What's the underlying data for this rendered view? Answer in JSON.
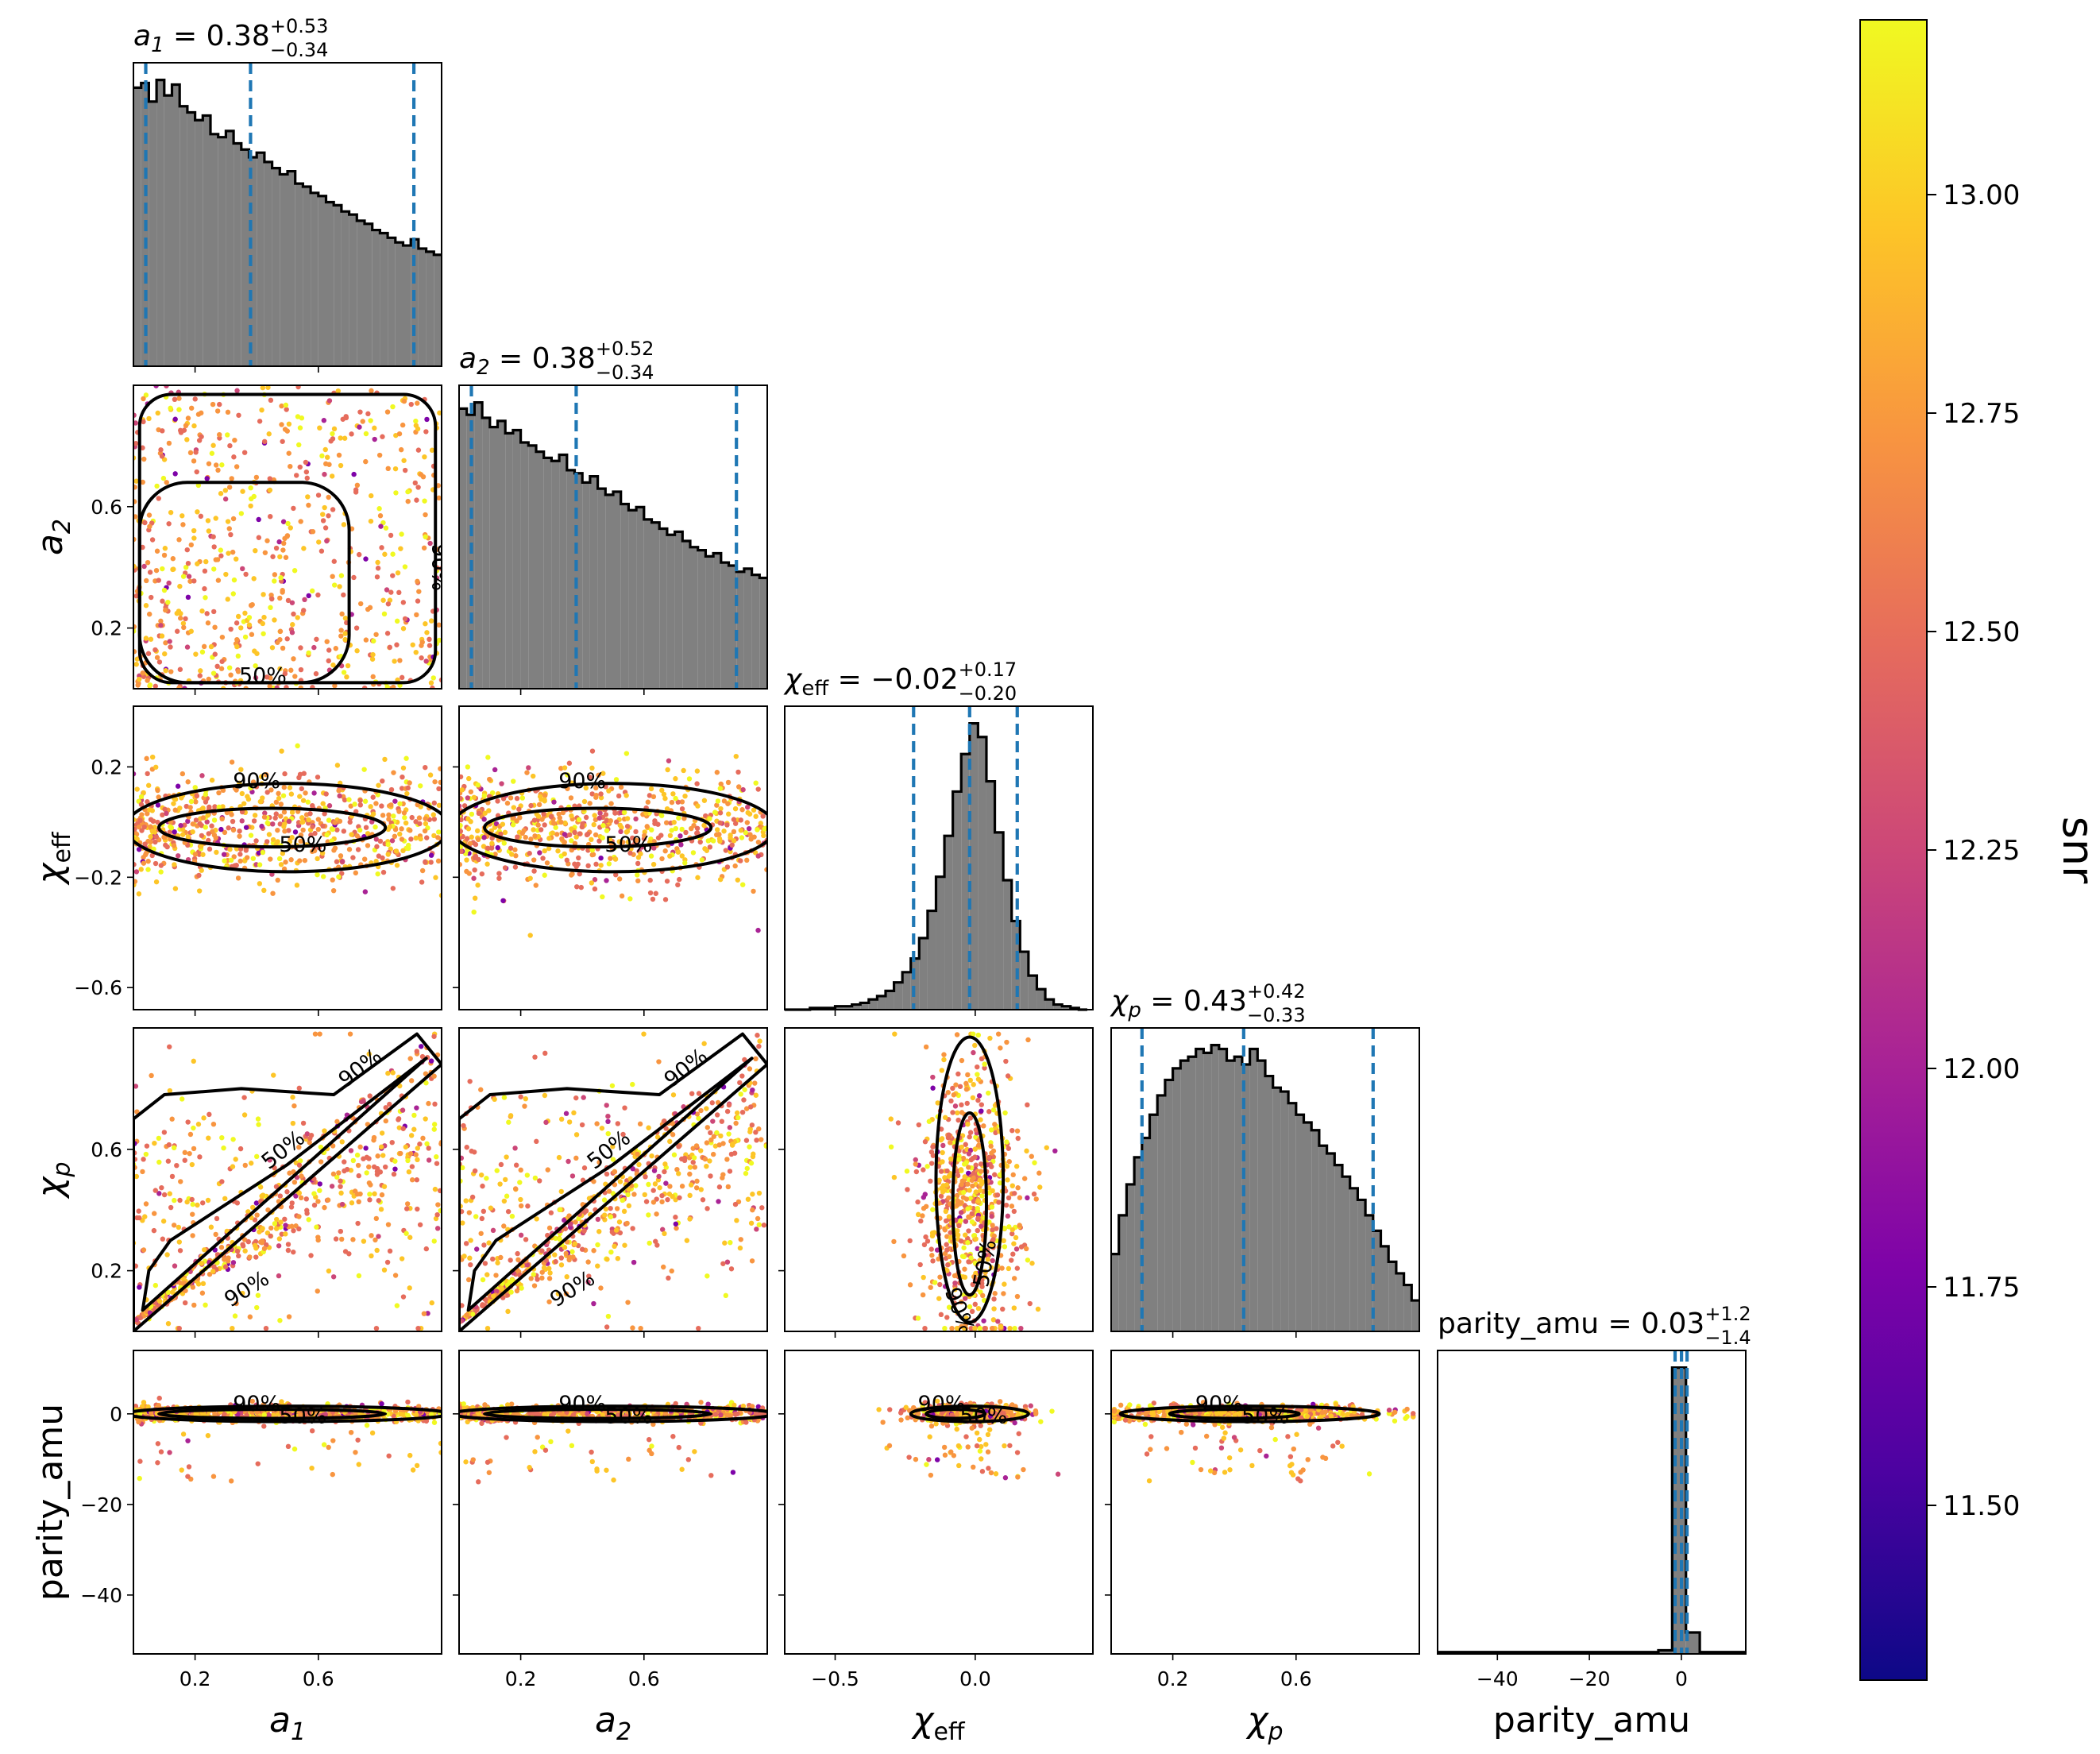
{
  "chart_data": {
    "type": "corner",
    "parameters": [
      "a_1",
      "a_2",
      "chi_eff",
      "chi_p",
      "parity_amu"
    ],
    "axis_labels": {
      "a_1": {
        "base": "a",
        "sub": "1",
        "italic": true
      },
      "a_2": {
        "base": "a",
        "sub": "2",
        "italic": true
      },
      "chi_eff": {
        "base": "χ",
        "sub": "eff",
        "italic": true
      },
      "chi_p": {
        "base": "χ",
        "sub": "p",
        "italic": true
      },
      "parity_amu": {
        "base": "parity_amu",
        "sub": "",
        "italic": false
      }
    },
    "titles": [
      {
        "param": "a_1",
        "median": "0.38",
        "plus": "+0.53",
        "minus": "−0.34"
      },
      {
        "param": "a_2",
        "median": "0.38",
        "plus": "+0.52",
        "minus": "−0.34"
      },
      {
        "param": "chi_eff",
        "median": "−0.02",
        "plus": "+0.17",
        "minus": "−0.20"
      },
      {
        "param": "chi_p",
        "median": "0.43",
        "plus": "+0.42",
        "minus": "−0.33"
      },
      {
        "param": "parity_amu",
        "median": "0.03",
        "plus": "+1.2",
        "minus": "−1.4"
      }
    ],
    "ranges": {
      "a_1": [
        0.0,
        1.0
      ],
      "a_2": [
        0.0,
        1.0
      ],
      "chi_eff": [
        -0.68,
        0.42
      ],
      "chi_p": [
        0.0,
        1.0
      ],
      "parity_amu": [
        -53,
        14
      ]
    },
    "ticks": {
      "a_1": [
        {
          "v": 0.2,
          "label": "0.2"
        },
        {
          "v": 0.6,
          "label": "0.6"
        }
      ],
      "a_2": [
        {
          "v": 0.2,
          "label": "0.2"
        },
        {
          "v": 0.6,
          "label": "0.6"
        }
      ],
      "chi_eff": [
        {
          "v": -0.6,
          "label": "−0.6"
        },
        {
          "v": -0.2,
          "label": "−0.2"
        },
        {
          "v": 0.2,
          "label": "0.2"
        }
      ],
      "chi_eff_x": [
        {
          "v": -0.5,
          "label": "−0.5"
        },
        {
          "v": 0.0,
          "label": "0.0"
        }
      ],
      "chi_p": [
        {
          "v": 0.2,
          "label": "0.2"
        },
        {
          "v": 0.6,
          "label": "0.6"
        }
      ],
      "parity_amu": [
        {
          "v": -40,
          "label": "−40"
        },
        {
          "v": -20,
          "label": "−20"
        },
        {
          "v": 0,
          "label": "0"
        }
      ]
    },
    "quantiles": {
      "a_1": [
        0.04,
        0.38,
        0.91
      ],
      "a_2": [
        0.04,
        0.38,
        0.9
      ],
      "chi_eff": [
        -0.22,
        -0.02,
        0.15
      ],
      "chi_p": [
        0.1,
        0.43,
        0.85
      ],
      "parity_amu": [
        -1.37,
        0.03,
        1.23
      ]
    },
    "histograms": {
      "a_1": {
        "bins": [
          0.0,
          0.025,
          0.05,
          0.075,
          0.1,
          0.125,
          0.15,
          0.175,
          0.2,
          0.225,
          0.25,
          0.275,
          0.3,
          0.325,
          0.35,
          0.375,
          0.4,
          0.425,
          0.45,
          0.475,
          0.5,
          0.525,
          0.55,
          0.575,
          0.6,
          0.625,
          0.65,
          0.675,
          0.7,
          0.725,
          0.75,
          0.775,
          0.8,
          0.825,
          0.85,
          0.875,
          0.9,
          0.925,
          0.95,
          0.975,
          1.0
        ],
        "counts": [
          180,
          183,
          171,
          185,
          175,
          182,
          168,
          164,
          159,
          162,
          150,
          148,
          152,
          144,
          140,
          135,
          138,
          132,
          128,
          124,
          126,
          118,
          116,
          112,
          110,
          106,
          104,
          100,
          98,
          94,
          92,
          88,
          86,
          83,
          80,
          78,
          82,
          76,
          74,
          72
        ]
      },
      "a_2": {
        "bins": [
          0.0,
          0.025,
          0.05,
          0.075,
          0.1,
          0.125,
          0.15,
          0.175,
          0.2,
          0.225,
          0.25,
          0.275,
          0.3,
          0.325,
          0.35,
          0.375,
          0.4,
          0.425,
          0.45,
          0.475,
          0.5,
          0.525,
          0.55,
          0.575,
          0.6,
          0.625,
          0.65,
          0.675,
          0.7,
          0.725,
          0.75,
          0.775,
          0.8,
          0.825,
          0.85,
          0.875,
          0.9,
          0.925,
          0.95,
          0.975,
          1.0
        ],
        "counts": [
          182,
          178,
          186,
          176,
          170,
          174,
          166,
          168,
          160,
          158,
          154,
          150,
          148,
          152,
          142,
          140,
          134,
          138,
          130,
          126,
          128,
          120,
          116,
          118,
          110,
          108,
          104,
          100,
          102,
          96,
          92,
          90,
          86,
          88,
          82,
          80,
          76,
          78,
          74,
          72
        ]
      },
      "chi_eff": {
        "bins": [
          -0.68,
          -0.65,
          -0.62,
          -0.59,
          -0.56,
          -0.53,
          -0.5,
          -0.47,
          -0.44,
          -0.41,
          -0.38,
          -0.35,
          -0.32,
          -0.29,
          -0.26,
          -0.23,
          -0.2,
          -0.17,
          -0.14,
          -0.11,
          -0.08,
          -0.05,
          -0.02,
          0.01,
          0.04,
          0.07,
          0.1,
          0.13,
          0.16,
          0.19,
          0.22,
          0.25,
          0.28,
          0.31,
          0.34,
          0.37,
          0.4
        ],
        "counts": [
          0,
          0,
          0,
          1,
          1,
          1,
          2,
          2,
          3,
          4,
          6,
          8,
          11,
          16,
          22,
          30,
          42,
          58,
          78,
          102,
          128,
          150,
          168,
          160,
          134,
          104,
          76,
          52,
          34,
          20,
          12,
          6,
          3,
          2,
          1,
          0
        ]
      },
      "chi_p": {
        "bins": [
          0.0,
          0.025,
          0.05,
          0.075,
          0.1,
          0.125,
          0.15,
          0.175,
          0.2,
          0.225,
          0.25,
          0.275,
          0.3,
          0.325,
          0.35,
          0.375,
          0.4,
          0.425,
          0.45,
          0.475,
          0.5,
          0.525,
          0.55,
          0.575,
          0.6,
          0.625,
          0.65,
          0.675,
          0.7,
          0.725,
          0.75,
          0.775,
          0.8,
          0.825,
          0.85,
          0.875,
          0.9,
          0.925,
          0.95,
          0.975,
          1.0
        ],
        "counts": [
          40,
          60,
          76,
          90,
          100,
          112,
          122,
          130,
          136,
          140,
          142,
          146,
          144,
          148,
          146,
          140,
          142,
          138,
          146,
          140,
          132,
          126,
          124,
          118,
          112,
          108,
          104,
          96,
          92,
          86,
          80,
          74,
          68,
          60,
          52,
          44,
          36,
          30,
          24,
          16
        ]
      },
      "parity_amu": {
        "bins": [
          -53,
          -50,
          -47,
          -44,
          -41,
          -38,
          -35,
          -32,
          -29,
          -26,
          -23,
          -20,
          -17,
          -14,
          -11,
          -8,
          -5,
          -2,
          1,
          4,
          7,
          10,
          13,
          14
        ],
        "counts": [
          1,
          1,
          1,
          1,
          1,
          1,
          1,
          1,
          1,
          1,
          1,
          1,
          1,
          1,
          1,
          1,
          2,
          160,
          12,
          1,
          1,
          1,
          1
        ]
      }
    },
    "contour_levels": [
      "50%",
      "90%"
    ],
    "colorbar": {
      "label": "snr",
      "colormap": "plasma",
      "range": [
        11.3,
        13.2
      ],
      "ticks": [
        {
          "v": 11.5,
          "label": "11.50"
        },
        {
          "v": 11.75,
          "label": "11.75"
        },
        {
          "v": 12.0,
          "label": "12.00"
        },
        {
          "v": 12.25,
          "label": "12.25"
        },
        {
          "v": 12.5,
          "label": "12.50"
        },
        {
          "v": 12.75,
          "label": "12.75"
        },
        {
          "v": 13.0,
          "label": "13.00"
        }
      ]
    },
    "colors": {
      "histogram_fill": "#808080",
      "histogram_edge": "#000000",
      "quantile_line": "#1f77b4",
      "contour": "#000000"
    }
  }
}
